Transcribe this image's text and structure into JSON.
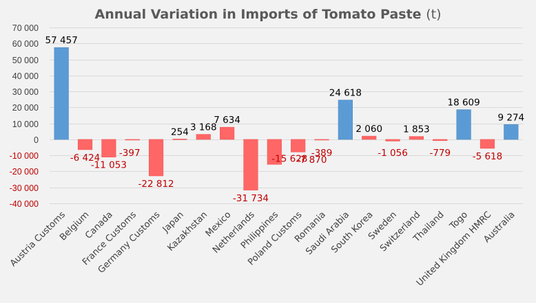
{
  "chart_data": {
    "type": "bar",
    "title": "Annual Variation in Imports of Tomato Paste",
    "title_unit": "(t)",
    "xlabel": "",
    "ylabel": "",
    "ylim": [
      -40000,
      70000
    ],
    "yticks": [
      70000,
      60000,
      50000,
      40000,
      30000,
      20000,
      10000,
      0,
      -10000,
      -20000,
      -30000,
      -40000
    ],
    "ytick_labels": [
      "70 000",
      "60 000",
      "50 000",
      "40 000",
      "30 000",
      "20 000",
      "10 000",
      "0",
      "-10 000",
      "-20 000",
      "-30 000",
      "-40 000"
    ],
    "grid": true,
    "legend": "none",
    "categories": [
      "Austria Customs",
      "Belgium",
      "Canada",
      "France Customs",
      "Germany Customs",
      "Japan",
      "Kazakhstan",
      "Mexico",
      "Netherlands",
      "Philippines",
      "Poland Customs",
      "Romania",
      "Saudi Arabia",
      "South Korea",
      "Sweden",
      "Switzerland",
      "Thailand",
      "Togo",
      "United Kingdom HMRC",
      "Australia"
    ],
    "values": [
      57457,
      -6424,
      -11053,
      -397,
      -22812,
      254,
      3168,
      7634,
      -31734,
      -15628,
      -7870,
      -389,
      24618,
      2060,
      -1056,
      1853,
      -779,
      18609,
      -5618,
      9274
    ],
    "value_labels": [
      "57 457",
      "-6 424",
      "-11 053",
      "-397",
      "-22 812",
      "254",
      "3 168",
      "7 634",
      "-31 734",
      "-15 628",
      "-7 870",
      "-389",
      "24 618",
      "2 060",
      "-1 056",
      "1 853",
      "-779",
      "18 609",
      "-5 618",
      "9 274"
    ],
    "bar_color_groups": [
      "blue",
      "red",
      "red",
      "red",
      "red",
      "red",
      "red",
      "red",
      "red",
      "red",
      "red",
      "red",
      "blue",
      "red",
      "red",
      "red",
      "red",
      "blue",
      "red",
      "blue"
    ]
  },
  "colors": {
    "blue": "#5b9bd5",
    "red": "#ff6666",
    "negative_label": "#c00000",
    "positive_label": "#000000",
    "positive_tick": "#404040",
    "negative_tick": "#c00000",
    "background": "#f2f2f2"
  }
}
